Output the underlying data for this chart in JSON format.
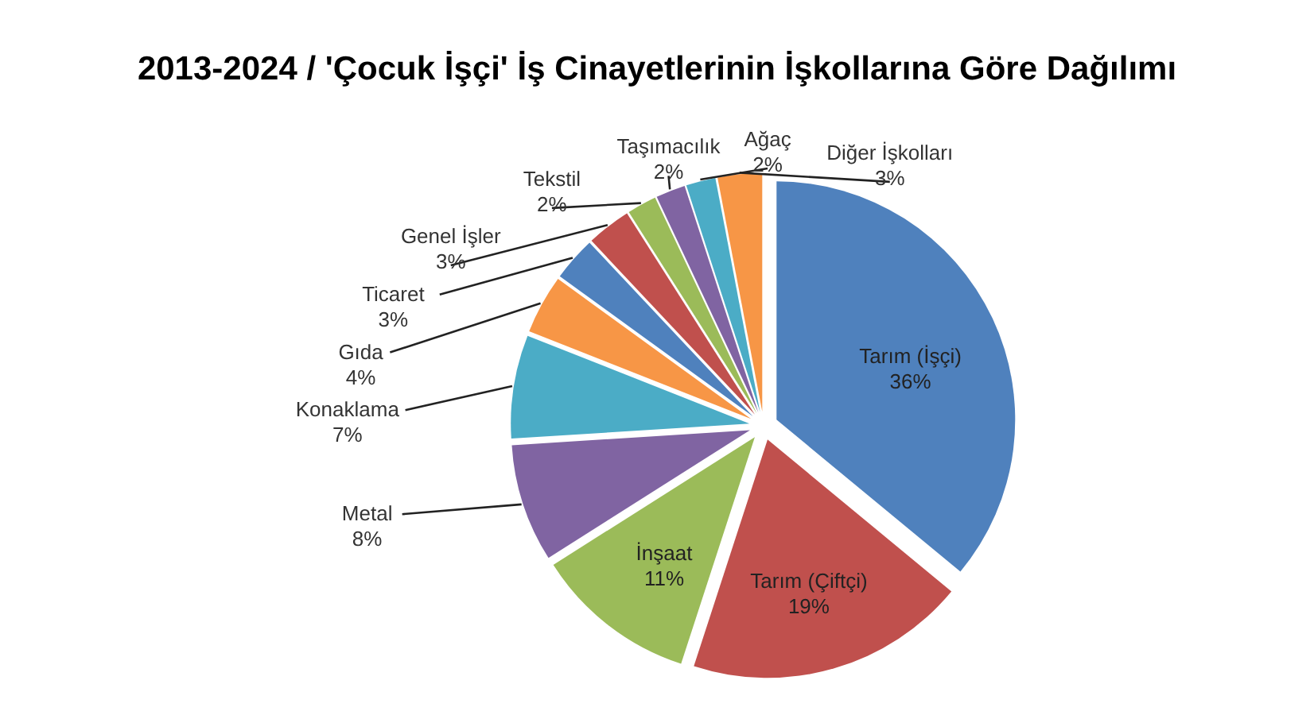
{
  "chart_data": {
    "type": "pie",
    "title": "2013-2024 / 'Çocuk İşçi' İş Cinayetlerinin İşkollarına Göre Dağılımı",
    "categories": [
      "Tarım (İşçi)",
      "Tarım (Çiftçi)",
      "İnşaat",
      "Metal",
      "Konaklama",
      "Gıda",
      "Ticaret",
      "Genel İşler",
      "Tekstil",
      "Taşımacılık",
      "Ağaç",
      "Diğer İşkolları"
    ],
    "values": [
      36,
      19,
      11,
      8,
      7,
      4,
      3,
      3,
      2,
      2,
      2,
      3
    ],
    "colors": [
      "#4f81bd",
      "#c0504d",
      "#9bbb59",
      "#8064a2",
      "#4bacc6",
      "#f79646",
      "#4f81bd",
      "#c0504d",
      "#9bbb59",
      "#8064a2",
      "#4bacc6",
      "#f79646"
    ],
    "value_labels": [
      "36%",
      "19%",
      "11%",
      "8%",
      "7%",
      "4%",
      "3%",
      "3%",
      "2%",
      "2%",
      "2%",
      "3%"
    ]
  }
}
